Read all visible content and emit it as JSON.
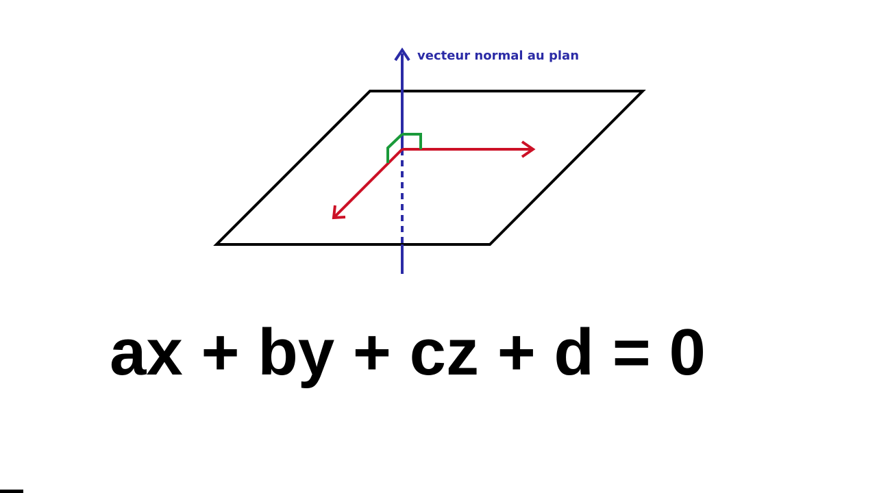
{
  "diagram": {
    "normal_vector_label": "vecteur normal au plan",
    "equation": "ax + by + cz + d = 0"
  },
  "colors": {
    "plane": "#000000",
    "normal_vector": "#2b2ba6",
    "in_plane_vectors": "#cc1126",
    "right_angle_marker": "#1a9a3a",
    "equation_text": "#000000"
  }
}
